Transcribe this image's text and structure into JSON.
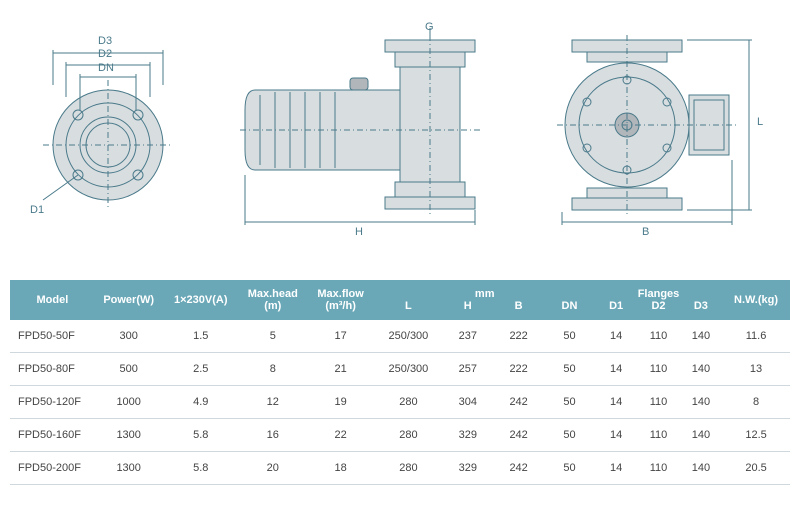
{
  "diagrams": {
    "flange_labels": {
      "d3": "D3",
      "d2": "D2",
      "dn": "DN",
      "d1": "D1"
    },
    "side_labels": {
      "g": "G",
      "h": "H"
    },
    "front_labels": {
      "l": "L",
      "b": "B"
    }
  },
  "table": {
    "header": {
      "model": "Model",
      "power": "Power(W)",
      "voltage": "1×230V(A)",
      "maxhead": "Max.head (m)",
      "maxflow": "Max.flow (m³/h)",
      "mm_group": "mm",
      "l": "L",
      "h": "H",
      "b": "B",
      "dn": "DN",
      "flanges_group": "Flanges",
      "d1": "D1",
      "d2": "D2",
      "d3": "D3",
      "nw": "N.W.(kg)"
    },
    "rows": [
      {
        "model": "FPD50-50F",
        "power": "300",
        "voltage": "1.5",
        "maxhead": "5",
        "maxflow": "17",
        "l": "250/300",
        "h": "237",
        "b": "222",
        "dn": "50",
        "d1": "14",
        "d2": "110",
        "d3": "140",
        "nw": "11.6"
      },
      {
        "model": "FPD50-80F",
        "power": "500",
        "voltage": "2.5",
        "maxhead": "8",
        "maxflow": "21",
        "l": "250/300",
        "h": "257",
        "b": "222",
        "dn": "50",
        "d1": "14",
        "d2": "110",
        "d3": "140",
        "nw": "13"
      },
      {
        "model": "FPD50-120F",
        "power": "1000",
        "voltage": "4.9",
        "maxhead": "12",
        "maxflow": "19",
        "l": "280",
        "h": "304",
        "b": "242",
        "dn": "50",
        "d1": "14",
        "d2": "110",
        "d3": "140",
        "nw": "8"
      },
      {
        "model": "FPD50-160F",
        "power": "1300",
        "voltage": "5.8",
        "maxhead": "16",
        "maxflow": "22",
        "l": "280",
        "h": "329",
        "b": "242",
        "dn": "50",
        "d1": "14",
        "d2": "110",
        "d3": "140",
        "nw": "12.5"
      },
      {
        "model": "FPD50-200F",
        "power": "1300",
        "voltage": "5.8",
        "maxhead": "20",
        "maxflow": "18",
        "l": "280",
        "h": "329",
        "b": "242",
        "dn": "50",
        "d1": "14",
        "d2": "110",
        "d3": "140",
        "nw": "20.5"
      }
    ]
  },
  "colors": {
    "header_bg": "#6aa8b8",
    "header_text": "#ffffff",
    "row_border": "#cfd8dc",
    "cell_text": "#444444",
    "tech_stroke": "#4a7a8a",
    "tech_fill": "#d8dde0"
  }
}
